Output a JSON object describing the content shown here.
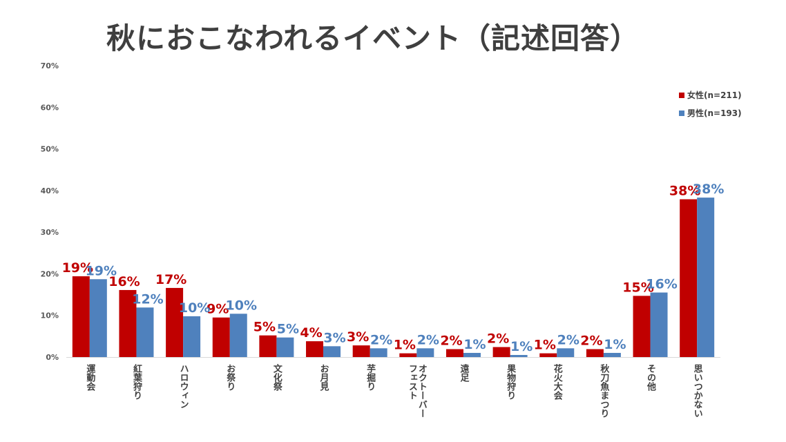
{
  "chart_data": {
    "type": "bar",
    "title": "秋におこなわれるイベント（記述回答）",
    "ylim": [
      0,
      70
    ],
    "yticks": [
      "0%",
      "10%",
      "20%",
      "30%",
      "40%",
      "50%",
      "60%",
      "70%"
    ],
    "grid": false,
    "legend_position": "top-right",
    "categories": [
      "運動会",
      "紅葉狩り",
      "ハロウィン",
      "お祭り",
      "文化祭",
      "お月見",
      "芋掘り",
      "オクトーバーフェスト",
      "遠足",
      "果物狩り",
      "花火大会",
      "秋刀魚まつり",
      "その他",
      "思いつかない"
    ],
    "category_lines": [
      [
        "運動会"
      ],
      [
        "紅葉狩り"
      ],
      [
        "ハロウィン"
      ],
      [
        "お祭り"
      ],
      [
        "文化祭"
      ],
      [
        "お月見"
      ],
      [
        "芋掘り"
      ],
      [
        "オクトーバー",
        "フェスト"
      ],
      [
        "遠足"
      ],
      [
        "果物狩り"
      ],
      [
        "花火大会"
      ],
      [
        "秋刀魚まつり"
      ],
      [
        "その他"
      ],
      [
        "思いつかない"
      ]
    ],
    "series": [
      {
        "name": "女性(n=211)",
        "color": "#c00000",
        "values": [
          19.4,
          16.1,
          16.6,
          9.5,
          5.2,
          3.8,
          2.8,
          0.9,
          1.9,
          2.4,
          0.9,
          1.9,
          14.7,
          37.9
        ],
        "labels": [
          "19%",
          "16%",
          "17%",
          "9%",
          "5%",
          "4%",
          "3%",
          "1%",
          "2%",
          "2%",
          "1%",
          "2%",
          "15%",
          "38%"
        ]
      },
      {
        "name": "男性(n=193)",
        "color": "#4f81bd",
        "values": [
          18.7,
          11.9,
          9.8,
          10.4,
          4.7,
          2.6,
          2.1,
          2.1,
          1.0,
          0.5,
          2.1,
          1.0,
          15.5,
          38.3
        ],
        "labels": [
          "19%",
          "12%",
          "10%",
          "10%",
          "5%",
          "3%",
          "2%",
          "2%",
          "1%",
          "1%",
          "2%",
          "1%",
          "16%",
          "38%"
        ]
      }
    ]
  }
}
